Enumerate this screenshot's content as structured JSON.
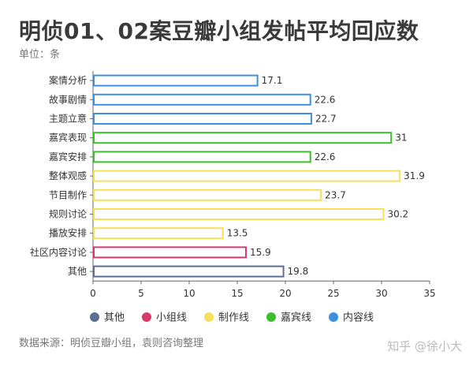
{
  "title": "明侦01、02案豆瓣小组发帖平均回应数",
  "unit_label": "单位：条",
  "source": "数据来源：明侦豆瓣小组，袁则咨询整理",
  "watermark": "知乎 @徐小大",
  "colors": {
    "其他": "#5b6f96",
    "小组线": "#d63a6a",
    "制作线": "#f7df5c",
    "嘉宾线": "#3bbf2c",
    "内容线": "#3d8fe0"
  },
  "chart_data": {
    "type": "bar",
    "orientation": "horizontal",
    "categories": [
      "案情分析",
      "故事剧情",
      "主题立意",
      "嘉宾表现",
      "嘉宾安排",
      "整体观感",
      "节目制作",
      "规则讨论",
      "播放安排",
      "社区内容讨论",
      "其他"
    ],
    "values": [
      17.1,
      22.6,
      22.7,
      31,
      22.6,
      31.9,
      23.7,
      30.2,
      13.5,
      15.9,
      19.8
    ],
    "value_labels": [
      "17.1",
      "22.6",
      "22.7",
      "31",
      "22.6",
      "31.9",
      "23.7",
      "30.2",
      "13.5",
      "15.9",
      "19.8"
    ],
    "groups": [
      "内容线",
      "内容线",
      "内容线",
      "嘉宾线",
      "嘉宾线",
      "制作线",
      "制作线",
      "制作线",
      "制作线",
      "小组线",
      "其他"
    ],
    "xlim": [
      0,
      35
    ],
    "xticks": [
      "0",
      "5",
      "10",
      "15",
      "20",
      "25",
      "30",
      "35"
    ],
    "legend": [
      "其他",
      "小组线",
      "制作线",
      "嘉宾线",
      "内容线"
    ],
    "legend_position": "bottom",
    "grid": false,
    "bar_style": "outlined"
  }
}
